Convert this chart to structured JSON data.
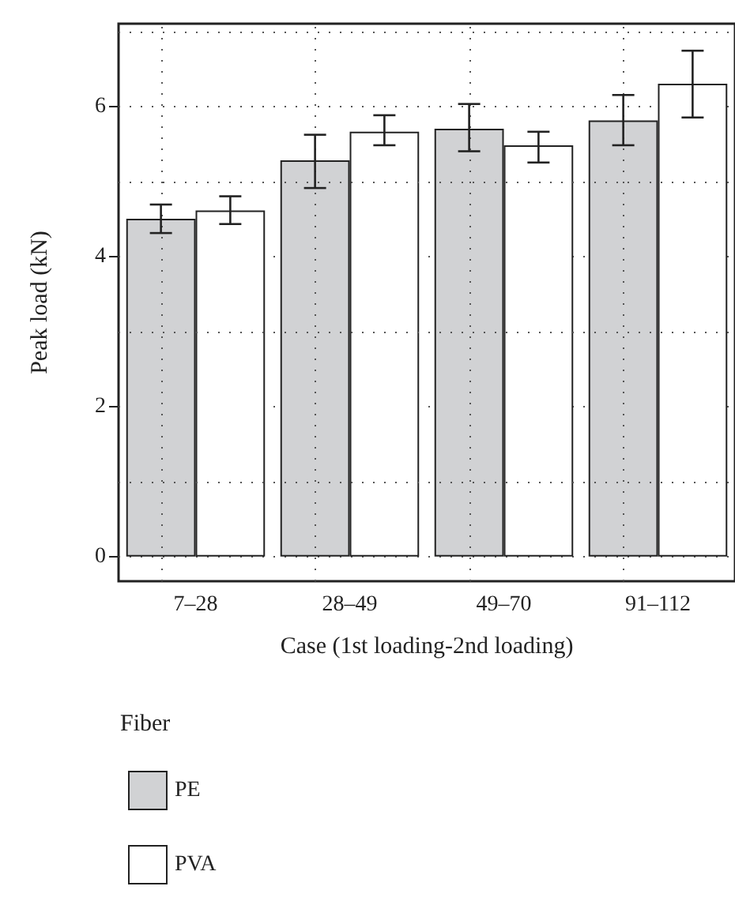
{
  "chart_data": {
    "type": "bar",
    "xlabel": "Case (1st loading-2nd loading)",
    "ylabel": "Peak load (kN)",
    "legend_title": "Fiber",
    "categories": [
      "7–28",
      "28–49",
      "49–70",
      "91–112"
    ],
    "series": [
      {
        "name": "PE",
        "color": "#d1d2d4",
        "values": [
          4.5,
          5.28,
          5.7,
          5.81
        ],
        "errors": [
          [
            4.31,
            4.69
          ],
          [
            4.91,
            5.62
          ],
          [
            5.4,
            6.03
          ],
          [
            5.48,
            6.15
          ]
        ]
      },
      {
        "name": "PVA",
        "color": "#ffffff",
        "values": [
          4.61,
          5.66,
          5.48,
          6.3
        ],
        "errors": [
          [
            4.43,
            4.8
          ],
          [
            5.48,
            5.88
          ],
          [
            5.25,
            5.66
          ],
          [
            5.85,
            6.74
          ]
        ]
      }
    ],
    "ylim": [
      -0.33,
      7.1
    ],
    "yticks": [
      0,
      2,
      4,
      6
    ],
    "grid": true,
    "legend": "bottom left"
  }
}
